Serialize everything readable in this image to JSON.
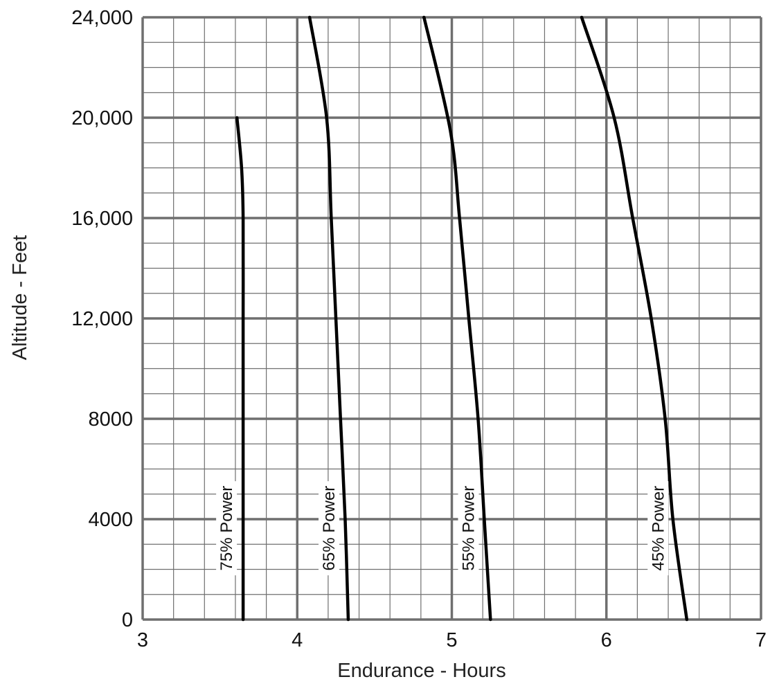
{
  "chart_data": {
    "type": "line",
    "title": "",
    "xlabel": "Endurance - Hours",
    "ylabel": "Altitude - Feet",
    "xlim": [
      3,
      7
    ],
    "ylim": [
      0,
      24000
    ],
    "x_ticks": [
      3,
      4,
      5,
      6,
      7
    ],
    "x_tick_labels": [
      "3",
      "4",
      "5",
      "6",
      "7"
    ],
    "y_ticks": [
      0,
      4000,
      8000,
      12000,
      16000,
      20000,
      24000
    ],
    "y_tick_labels": [
      "0",
      "4000",
      "8000",
      "12,000",
      "16,000",
      "20,000",
      "24,000"
    ],
    "grid": true,
    "minor_grid": {
      "x_step": 0.2,
      "y_step": 1000
    },
    "line_color": "#000000",
    "grid_color": "#6f6f6f",
    "series": [
      {
        "name": "75% Power",
        "points": [
          [
            3.65,
            0
          ],
          [
            3.65,
            4000
          ],
          [
            3.65,
            8000
          ],
          [
            3.65,
            12000
          ],
          [
            3.65,
            16000
          ],
          [
            3.64,
            18000
          ],
          [
            3.61,
            20000
          ]
        ]
      },
      {
        "name": "65% Power",
        "points": [
          [
            4.33,
            0
          ],
          [
            4.31,
            4000
          ],
          [
            4.28,
            8000
          ],
          [
            4.25,
            12000
          ],
          [
            4.22,
            16000
          ],
          [
            4.19,
            20000
          ],
          [
            4.08,
            24000
          ]
        ]
      },
      {
        "name": "55% Power",
        "points": [
          [
            5.25,
            0
          ],
          [
            5.21,
            4000
          ],
          [
            5.17,
            8000
          ],
          [
            5.11,
            12000
          ],
          [
            5.05,
            16000
          ],
          [
            4.99,
            19500
          ],
          [
            4.82,
            24000
          ]
        ]
      },
      {
        "name": "45% Power",
        "points": [
          [
            6.52,
            0
          ],
          [
            6.43,
            4000
          ],
          [
            6.38,
            8000
          ],
          [
            6.29,
            12000
          ],
          [
            6.17,
            16000
          ],
          [
            6.05,
            20000
          ],
          [
            5.84,
            24000
          ]
        ]
      }
    ]
  }
}
